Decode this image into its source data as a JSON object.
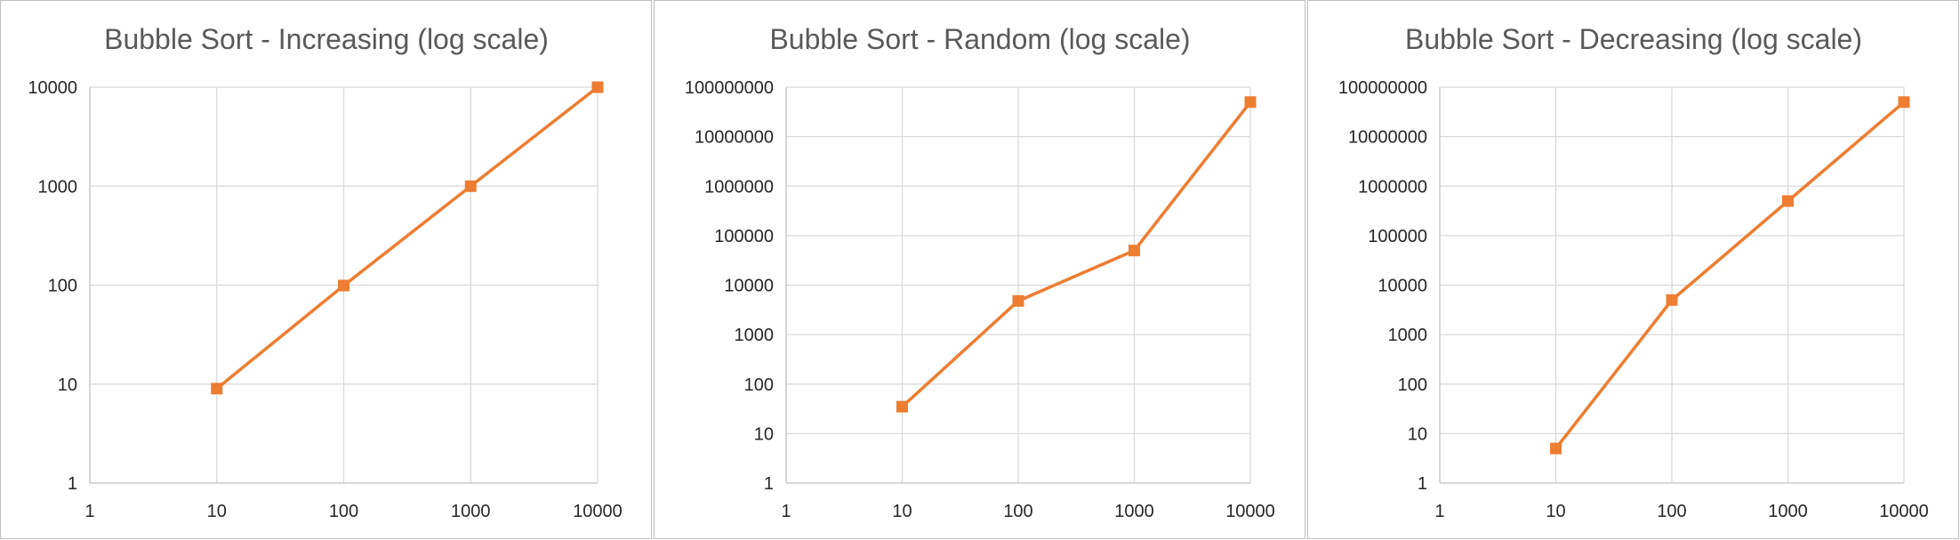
{
  "chart_data": [
    {
      "type": "line",
      "title": "Bubble Sort - Increasing (log scale)",
      "x_scale": "log",
      "y_scale": "log",
      "x_ticks": [
        "1",
        "10",
        "100",
        "1000",
        "10000"
      ],
      "y_ticks": [
        "1",
        "10",
        "100",
        "1000",
        "10000"
      ],
      "xlim": [
        1,
        10000
      ],
      "ylim": [
        1,
        10000
      ],
      "grid": true,
      "legend": "none",
      "series": [
        {
          "x": [
            10,
            100,
            1000,
            10000
          ],
          "values": [
            9,
            99,
            999,
            9999
          ]
        }
      ]
    },
    {
      "type": "line",
      "title": "Bubble Sort - Random (log scale)",
      "x_scale": "log",
      "y_scale": "log",
      "x_ticks": [
        "1",
        "10",
        "100",
        "1000",
        "10000"
      ],
      "y_ticks": [
        "1",
        "10",
        "100",
        "1000",
        "10000",
        "100000",
        "1000000",
        "10000000",
        "100000000"
      ],
      "xlim": [
        1,
        10000
      ],
      "ylim": [
        1,
        100000000
      ],
      "grid": true,
      "legend": "none",
      "series": [
        {
          "x": [
            10,
            100,
            1000,
            10000
          ],
          "values": [
            35,
            4800,
            50000,
            50000000
          ]
        }
      ]
    },
    {
      "type": "line",
      "title": "Bubble Sort - Decreasing (log scale)",
      "x_scale": "log",
      "y_scale": "log",
      "x_ticks": [
        "1",
        "10",
        "100",
        "1000",
        "10000"
      ],
      "y_ticks": [
        "1",
        "10",
        "100",
        "1000",
        "10000",
        "100000",
        "1000000",
        "10000000",
        "100000000"
      ],
      "xlim": [
        1,
        10000
      ],
      "ylim": [
        1,
        100000000
      ],
      "grid": true,
      "legend": "none",
      "series": [
        {
          "x": [
            10,
            100,
            1000,
            10000
          ],
          "values": [
            5,
            5000,
            500000,
            50000000
          ]
        }
      ]
    }
  ],
  "colors": {
    "series": "#ed7d31",
    "grid": "#d9d9d9",
    "border": "#bfbfbf",
    "title": "#595959"
  }
}
